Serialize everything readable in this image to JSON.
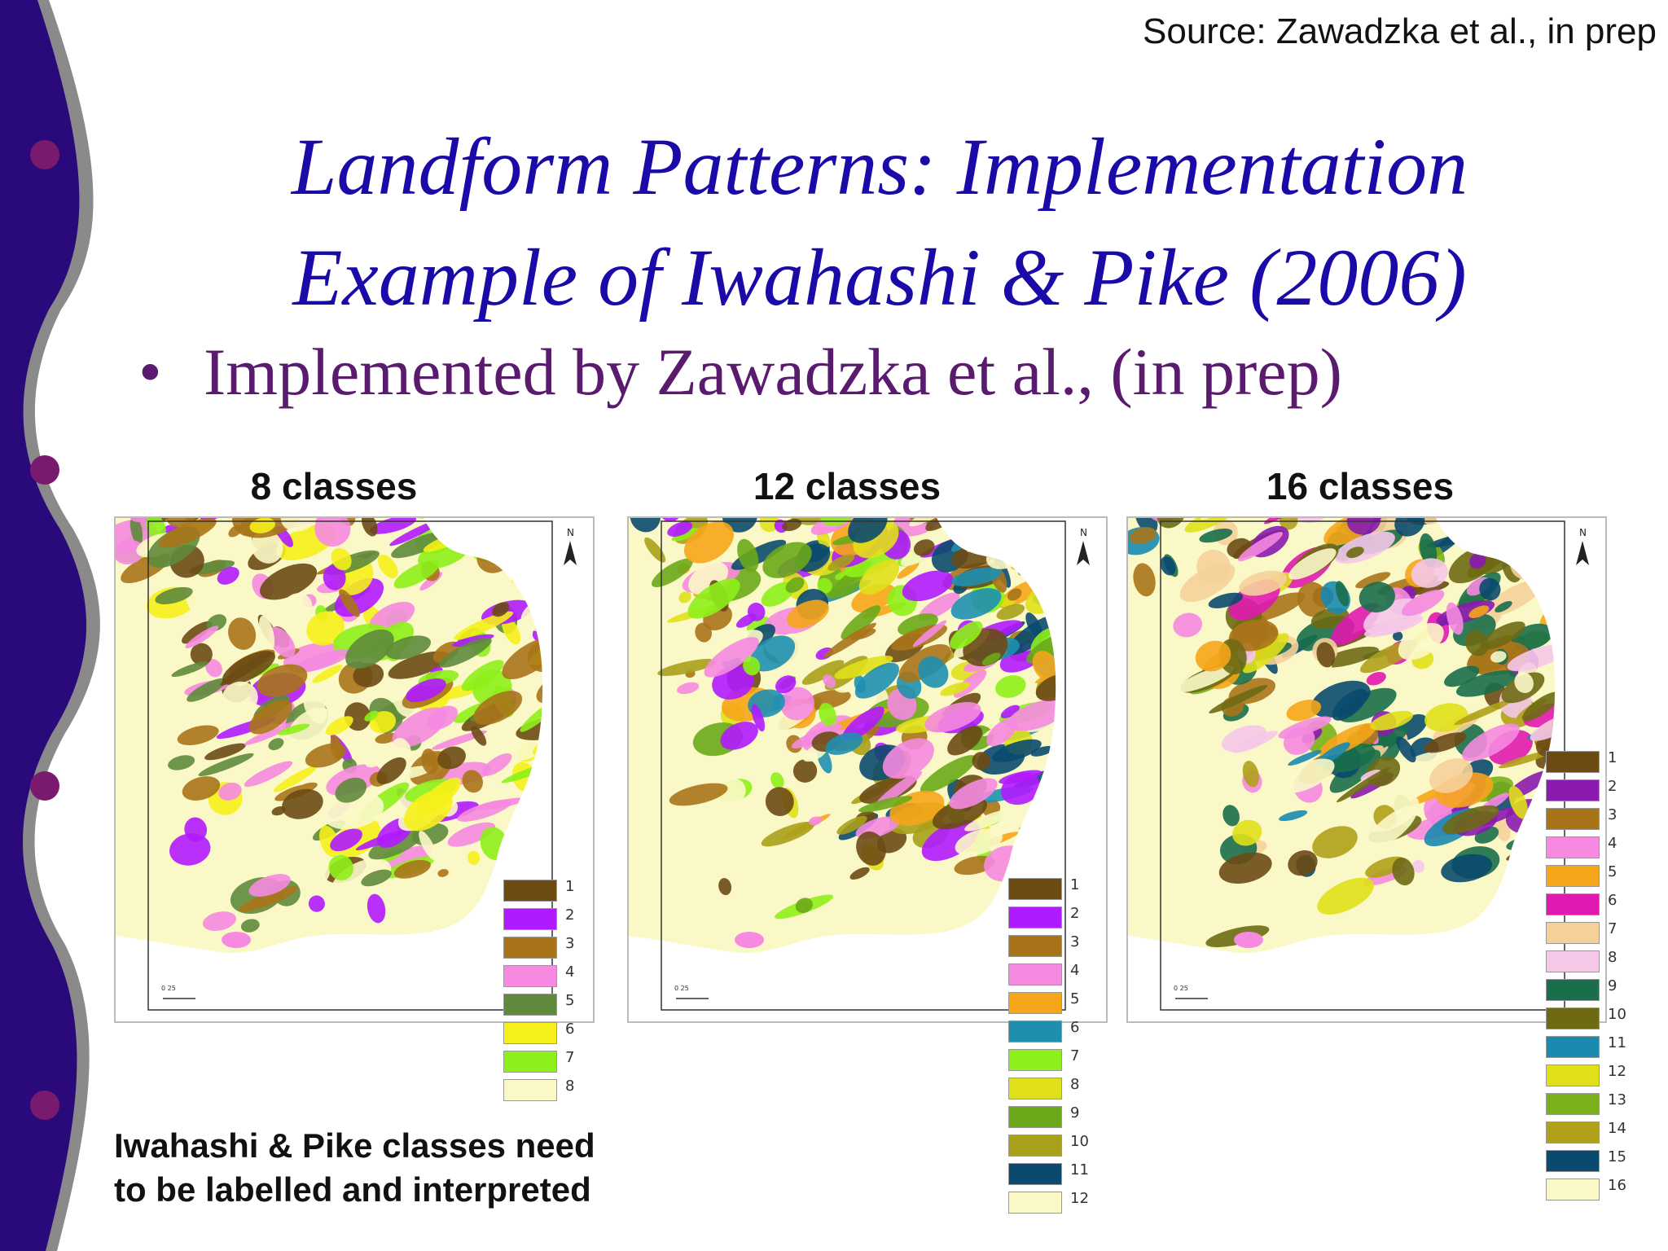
{
  "source": "Source: Zawadzka et al., in prep",
  "title_line1": "Landform Patterns: Implementation",
  "title_line2": "Example of Iwahashi & Pike (2006)",
  "bullet": "Implemented by Zawadzka et al., (in prep)",
  "bullet_marker": "•",
  "note_line1": "Iwahashi & Pike classes need",
  "note_line2": "to be labelled and interpreted",
  "north_label": "N",
  "scale_label": "0   25",
  "colors": {
    "sidebar": "#2a0a7a",
    "sidebar_edge": "#8a8a8a",
    "sidebar_dots": "#7a1a6e",
    "title": "#1a0aa8",
    "bullet": "#5a1a6e"
  },
  "maps": [
    {
      "title": "8 classes",
      "legend": [
        {
          "label": "1",
          "color": "#6b4a14"
        },
        {
          "label": "2",
          "color": "#b01aff"
        },
        {
          "label": "3",
          "color": "#a8741a"
        },
        {
          "label": "4",
          "color": "#f58ae0"
        },
        {
          "label": "5",
          "color": "#5f8a3c"
        },
        {
          "label": "6",
          "color": "#f5f01a"
        },
        {
          "label": "7",
          "color": "#8ef01a"
        },
        {
          "label": "8",
          "color": "#fbf8c8"
        }
      ]
    },
    {
      "title": "12 classes",
      "legend": [
        {
          "label": "1",
          "color": "#6b4a14"
        },
        {
          "label": "2",
          "color": "#b01aff"
        },
        {
          "label": "3",
          "color": "#a8741a"
        },
        {
          "label": "4",
          "color": "#f58ae0"
        },
        {
          "label": "5",
          "color": "#f5a51a"
        },
        {
          "label": "6",
          "color": "#1f8fb0"
        },
        {
          "label": "7",
          "color": "#8ef01a"
        },
        {
          "label": "8",
          "color": "#e0e01a"
        },
        {
          "label": "9",
          "color": "#6aa81a"
        },
        {
          "label": "10",
          "color": "#a8a01a"
        },
        {
          "label": "11",
          "color": "#0a4a6e"
        },
        {
          "label": "12",
          "color": "#fbf8c8"
        }
      ]
    },
    {
      "title": "16 classes",
      "legend": [
        {
          "label": "1",
          "color": "#6b4a14"
        },
        {
          "label": "2",
          "color": "#8a1ab0"
        },
        {
          "label": "3",
          "color": "#a8741a"
        },
        {
          "label": "4",
          "color": "#f58ae0"
        },
        {
          "label": "5",
          "color": "#f5a51a"
        },
        {
          "label": "6",
          "color": "#e01ab0"
        },
        {
          "label": "7",
          "color": "#f5d09a"
        },
        {
          "label": "8",
          "color": "#f5c8e8"
        },
        {
          "label": "9",
          "color": "#1a6e4a"
        },
        {
          "label": "10",
          "color": "#6e6a14"
        },
        {
          "label": "11",
          "color": "#1a8ab0"
        },
        {
          "label": "12",
          "color": "#e0e01a"
        },
        {
          "label": "13",
          "color": "#7ab01a"
        },
        {
          "label": "14",
          "color": "#b0a01a"
        },
        {
          "label": "15",
          "color": "#0a4a6e"
        },
        {
          "label": "16",
          "color": "#fbf8c8"
        }
      ]
    }
  ]
}
